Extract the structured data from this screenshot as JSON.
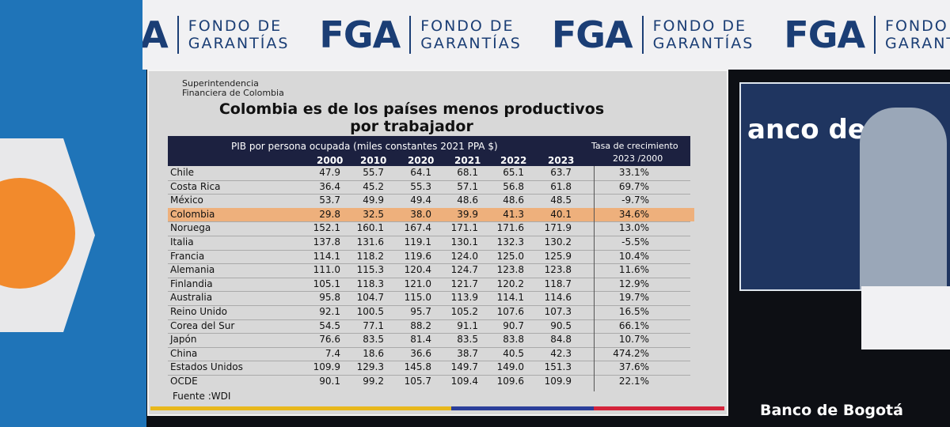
{
  "banner": {
    "brand": "FGA",
    "tagline": [
      "FONDO DE",
      "GARANTÍAS"
    ]
  },
  "slide": {
    "institution": [
      "Superintendencia",
      "Financiera de Colombia"
    ],
    "title": [
      "Colombia es de los países menos productivos",
      "por trabajador"
    ],
    "table": {
      "header": "PIB por persona ocupada (miles constantes 2021 PPA $)",
      "growth_header": [
        "Tasa de crecimiento",
        "2023 /2000"
      ],
      "years": [
        "2000",
        "2010",
        "2020",
        "2021",
        "2022",
        "2023"
      ],
      "highlight": "Colombia",
      "rows": [
        {
          "name": "Chile",
          "values": [
            "47.9",
            "55.7",
            "64.1",
            "68.1",
            "65.1",
            "63.7"
          ],
          "growth": "33.1%"
        },
        {
          "name": "Costa Rica",
          "values": [
            "36.4",
            "45.2",
            "55.3",
            "57.1",
            "56.8",
            "61.8"
          ],
          "growth": "69.7%"
        },
        {
          "name": "México",
          "values": [
            "53.7",
            "49.9",
            "49.4",
            "48.6",
            "48.6",
            "48.5"
          ],
          "growth": "-9.7%"
        },
        {
          "name": "Colombia",
          "values": [
            "29.8",
            "32.5",
            "38.0",
            "39.9",
            "41.3",
            "40.1"
          ],
          "growth": "34.6%"
        },
        {
          "name": "Noruega",
          "values": [
            "152.1",
            "160.1",
            "167.4",
            "171.1",
            "171.6",
            "171.9"
          ],
          "growth": "13.0%"
        },
        {
          "name": "Italia",
          "values": [
            "137.8",
            "131.6",
            "119.1",
            "130.1",
            "132.3",
            "130.2"
          ],
          "growth": "-5.5%"
        },
        {
          "name": "Francia",
          "values": [
            "114.1",
            "118.2",
            "119.6",
            "124.0",
            "125.0",
            "125.9"
          ],
          "growth": "10.4%"
        },
        {
          "name": "Alemania",
          "values": [
            "111.0",
            "115.3",
            "120.4",
            "124.7",
            "123.8",
            "123.8"
          ],
          "growth": "11.6%"
        },
        {
          "name": "Finlandia",
          "values": [
            "105.1",
            "118.3",
            "121.0",
            "121.7",
            "120.2",
            "118.7"
          ],
          "growth": "12.9%"
        },
        {
          "name": "Australia",
          "values": [
            "95.8",
            "104.7",
            "115.0",
            "113.9",
            "114.1",
            "114.6"
          ],
          "growth": "19.7%"
        },
        {
          "name": "Reino Unido",
          "values": [
            "92.1",
            "100.5",
            "95.7",
            "105.2",
            "107.6",
            "107.3"
          ],
          "growth": "16.5%"
        },
        {
          "name": "Corea del Sur",
          "values": [
            "54.5",
            "77.1",
            "88.2",
            "91.1",
            "90.7",
            "90.5"
          ],
          "growth": "66.1%"
        },
        {
          "name": "Japón",
          "values": [
            "76.6",
            "83.5",
            "81.4",
            "83.5",
            "83.8",
            "84.8"
          ],
          "growth": "10.7%"
        },
        {
          "name": "China",
          "values": [
            "7.4",
            "18.6",
            "36.6",
            "38.7",
            "40.5",
            "42.3"
          ],
          "growth": "474.2%"
        },
        {
          "name": "Estados Unidos",
          "values": [
            "109.9",
            "129.3",
            "145.8",
            "149.7",
            "149.0",
            "151.3"
          ],
          "growth": "37.6%"
        },
        {
          "name": "OCDE",
          "values": [
            "90.1",
            "99.2",
            "105.7",
            "109.4",
            "109.6",
            "109.9"
          ],
          "growth": "22.1%"
        }
      ],
      "source": "Fuente :WDI"
    }
  },
  "video": {
    "text": "anco de Bo"
  },
  "footer": {
    "text": "Banco de Bogotá"
  }
}
